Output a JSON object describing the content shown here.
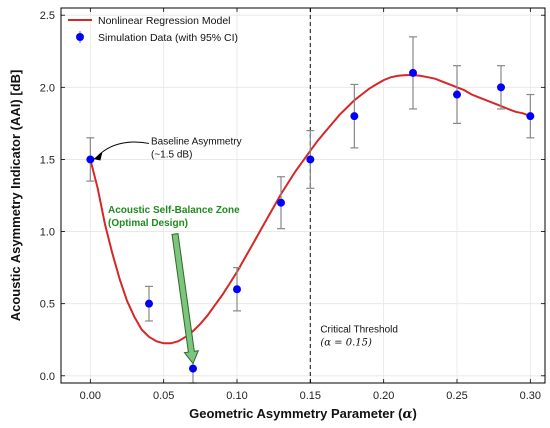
{
  "chart_data": {
    "type": "scatter",
    "xlabel_prefix": "Geometric Asymmetry Parameter (",
    "xlabel_symbol": "α",
    "xlabel_suffix": ")",
    "ylabel": "Acoustic Asymmetry Indicator (AAI) [dB]",
    "xlim": [
      -0.02,
      0.31
    ],
    "ylim": [
      -0.05,
      2.55
    ],
    "xticks": [
      0.0,
      0.05,
      0.1,
      0.15,
      0.2,
      0.25,
      0.3
    ],
    "xtick_labels": [
      "0.00",
      "0.05",
      "0.10",
      "0.15",
      "0.20",
      "0.25",
      "0.30"
    ],
    "yticks": [
      0.0,
      0.5,
      1.0,
      1.5,
      2.0,
      2.5
    ],
    "ytick_labels": [
      "0.0",
      "0.5",
      "1.0",
      "1.5",
      "2.0",
      "2.5"
    ],
    "grid": true,
    "legend_position": "top-left",
    "series": [
      {
        "name": "Nonlinear Regression Model",
        "kind": "line",
        "color": "#d62728",
        "x": [
          0.0,
          0.005,
          0.01,
          0.015,
          0.02,
          0.025,
          0.03,
          0.035,
          0.04,
          0.045,
          0.05,
          0.055,
          0.06,
          0.065,
          0.07,
          0.075,
          0.08,
          0.085,
          0.09,
          0.095,
          0.1,
          0.105,
          0.11,
          0.115,
          0.12,
          0.125,
          0.13,
          0.135,
          0.14,
          0.145,
          0.15,
          0.155,
          0.16,
          0.165,
          0.17,
          0.175,
          0.18,
          0.185,
          0.19,
          0.195,
          0.2,
          0.205,
          0.21,
          0.215,
          0.22,
          0.225,
          0.23,
          0.235,
          0.24,
          0.245,
          0.25,
          0.255,
          0.26,
          0.265,
          0.27,
          0.275,
          0.28,
          0.285,
          0.29,
          0.295,
          0.3
        ],
        "y": [
          1.5,
          1.3,
          1.05,
          0.85,
          0.67,
          0.52,
          0.41,
          0.32,
          0.27,
          0.24,
          0.225,
          0.225,
          0.24,
          0.27,
          0.31,
          0.36,
          0.42,
          0.49,
          0.56,
          0.64,
          0.72,
          0.81,
          0.9,
          0.99,
          1.08,
          1.17,
          1.26,
          1.34,
          1.42,
          1.49,
          1.56,
          1.63,
          1.69,
          1.75,
          1.81,
          1.86,
          1.91,
          1.95,
          1.99,
          2.02,
          2.05,
          2.07,
          2.08,
          2.085,
          2.085,
          2.08,
          2.07,
          2.06,
          2.04,
          2.02,
          2.0,
          1.98,
          1.95,
          1.93,
          1.91,
          1.89,
          1.87,
          1.85,
          1.83,
          1.82,
          1.8
        ]
      },
      {
        "name": "Simulation Data (with 95% CI)",
        "kind": "scatter",
        "color": "#0000ff",
        "errorbar_color": "#888888",
        "x": [
          0.0,
          0.04,
          0.07,
          0.1,
          0.13,
          0.15,
          0.18,
          0.22,
          0.25,
          0.28,
          0.3
        ],
        "y": [
          1.5,
          0.5,
          0.05,
          0.6,
          1.2,
          1.5,
          1.8,
          2.1,
          1.95,
          2.0,
          1.8
        ],
        "err": [
          0.15,
          0.12,
          0.1,
          0.15,
          0.18,
          0.2,
          0.22,
          0.25,
          0.2,
          0.15,
          0.15
        ]
      }
    ],
    "threshold": {
      "x": 0.15,
      "label_line1": "Critical Threshold",
      "label_line2": "(α = 0.15)"
    },
    "annotations": [
      {
        "id": "baseline",
        "line1": "Baseline Asymmetry",
        "line2": "(~1.5 dB)",
        "target_x": 0.0,
        "target_y": 1.5
      },
      {
        "id": "balance",
        "line1": "Acoustic Self-Balance Zone",
        "line2": "(Optimal Design)",
        "target_x": 0.07,
        "target_y": 0.05
      }
    ]
  }
}
